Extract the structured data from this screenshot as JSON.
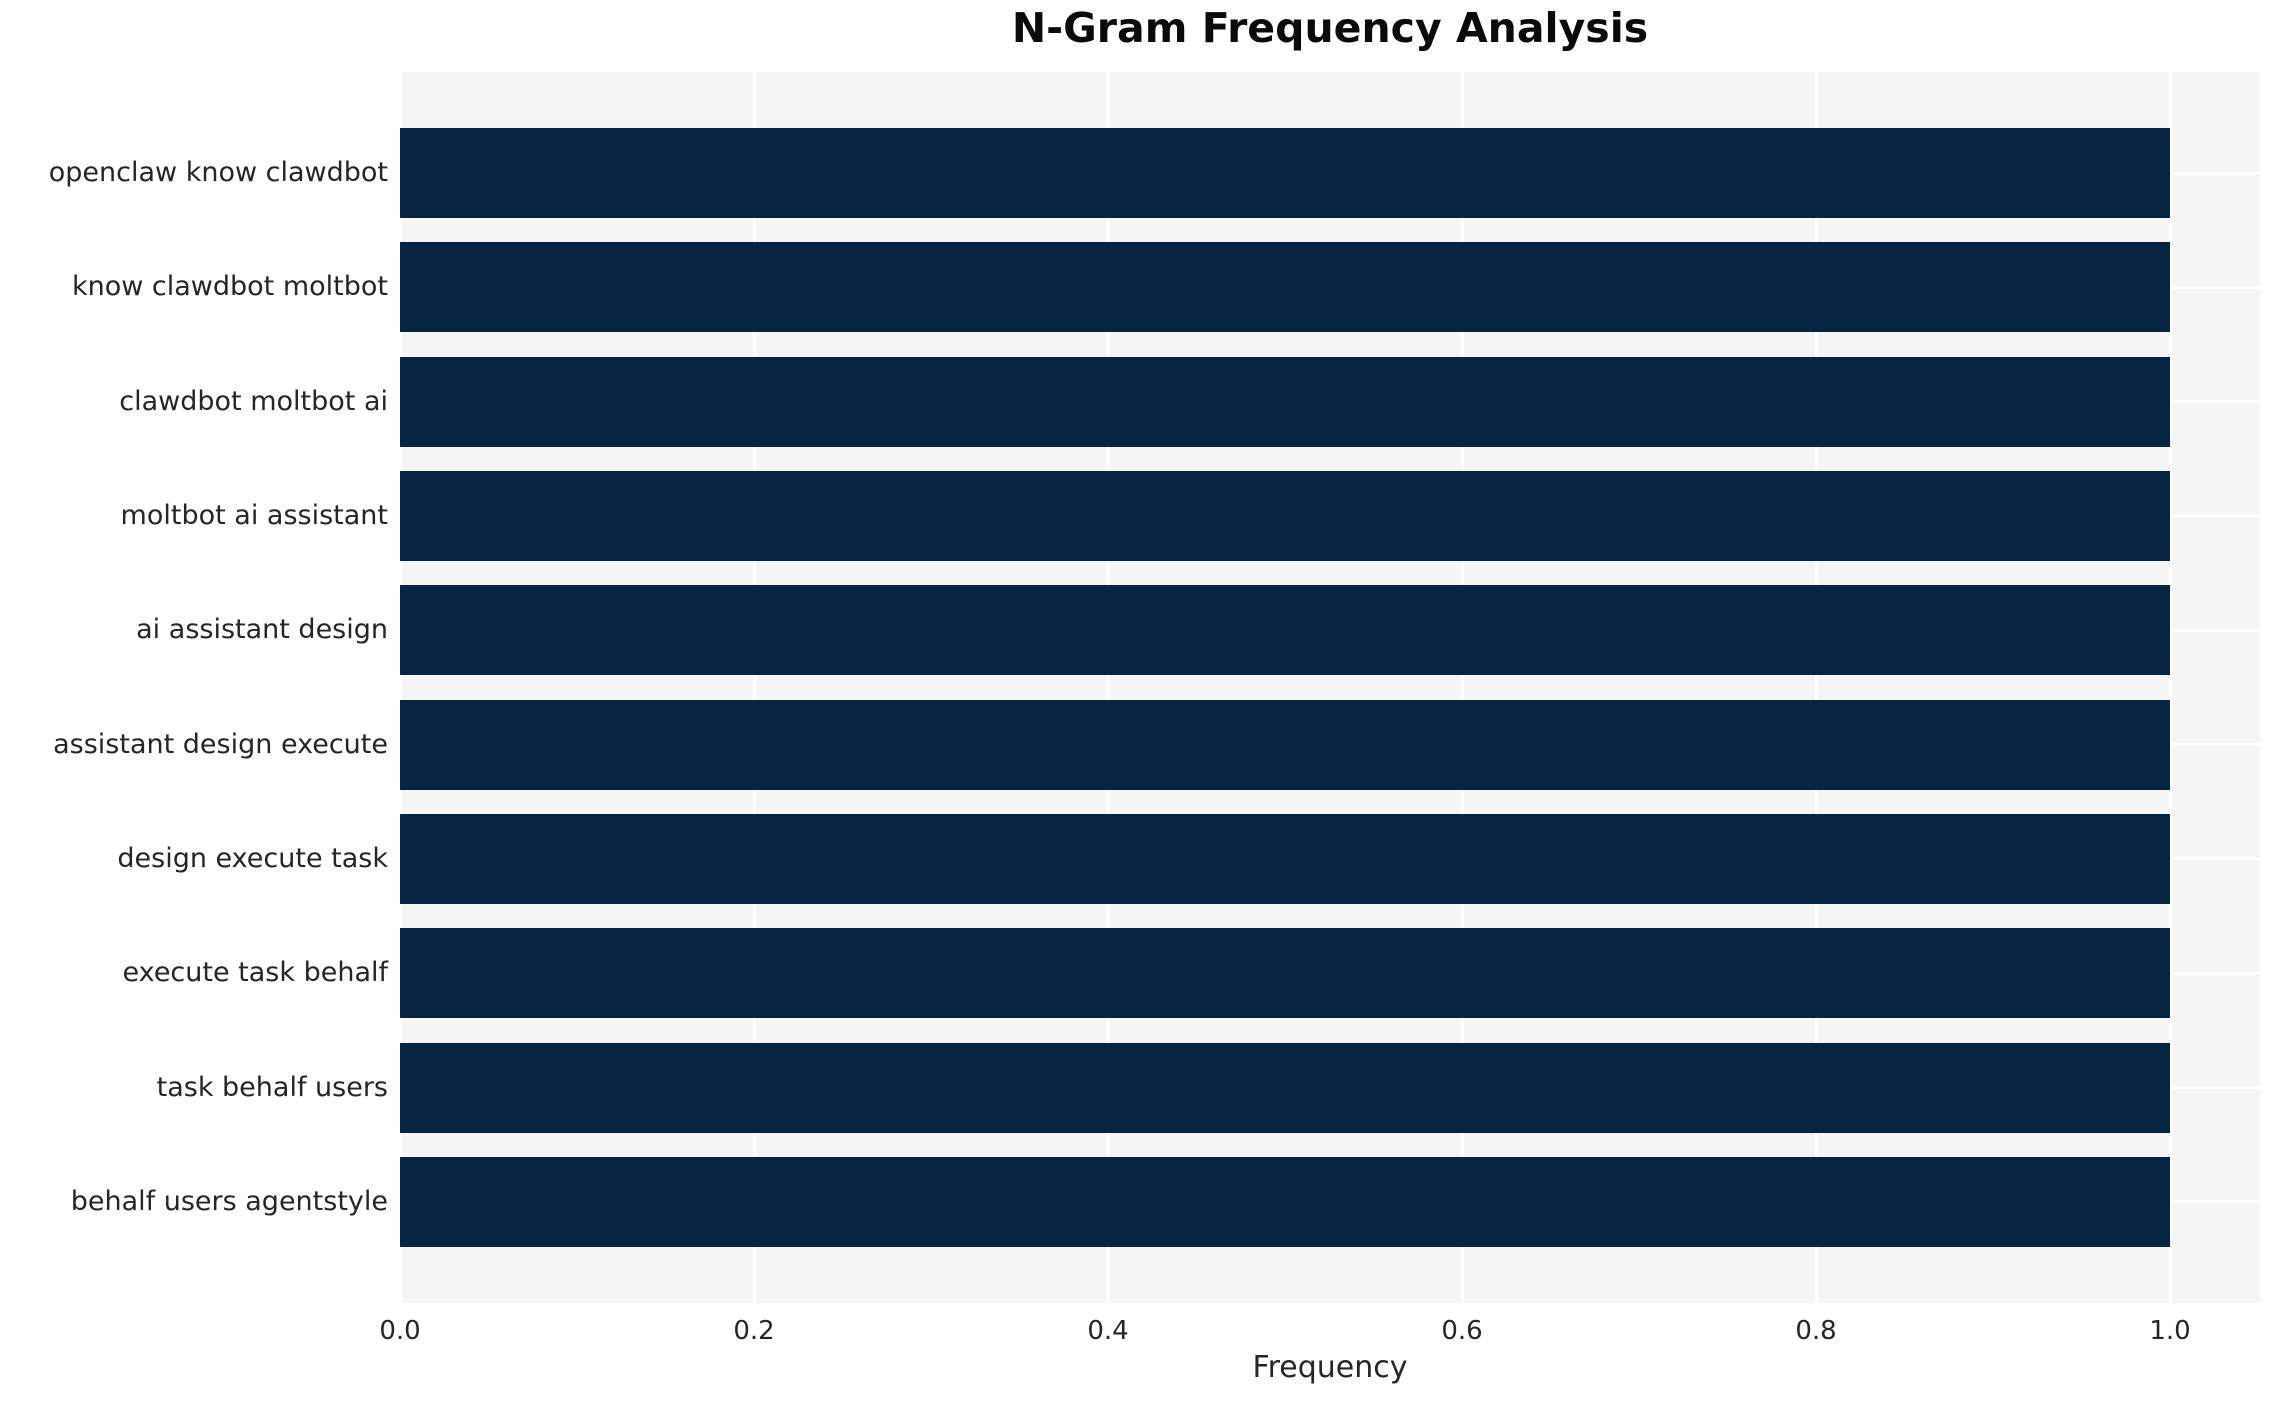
{
  "chart_data": {
    "type": "bar",
    "orientation": "horizontal",
    "title": "N-Gram Frequency Analysis",
    "xlabel": "Frequency",
    "ylabel": "",
    "categories": [
      "openclaw know clawdbot",
      "know clawdbot moltbot",
      "clawdbot moltbot ai",
      "moltbot ai assistant",
      "ai assistant design",
      "assistant design execute",
      "design execute task",
      "execute task behalf",
      "task behalf users",
      "behalf users agentstyle"
    ],
    "values": [
      1.0,
      1.0,
      1.0,
      1.0,
      1.0,
      1.0,
      1.0,
      1.0,
      1.0,
      1.0
    ],
    "xticks": [
      0.0,
      0.2,
      0.4,
      0.6,
      0.8,
      1.0
    ],
    "xtick_labels": [
      "0.0",
      "0.2",
      "0.4",
      "0.6",
      "0.8",
      "1.0"
    ],
    "xlim": [
      0.0,
      1.051
    ],
    "grid": true,
    "legend": null,
    "colors": {
      "bar": "#082443",
      "plot_background": "#f5f5f5",
      "figure_background": "#ffffff",
      "grid_line": "#ffffff",
      "tick_text": "#262626",
      "title_text": "#0a0a0a"
    }
  }
}
